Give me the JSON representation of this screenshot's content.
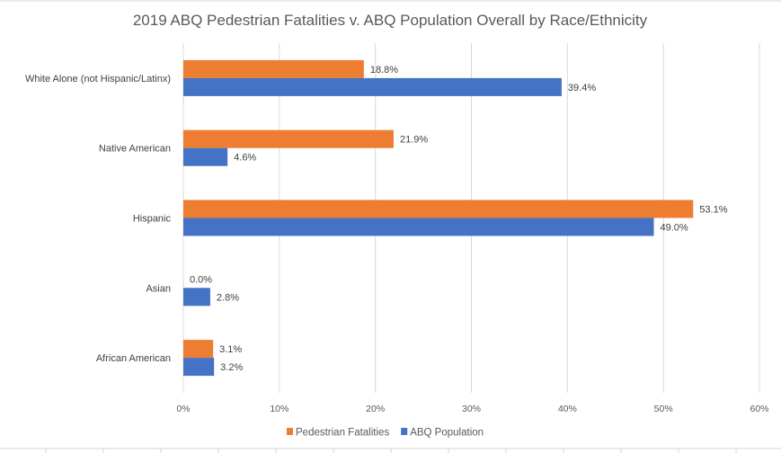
{
  "chart_data": {
    "type": "bar",
    "orientation": "horizontal",
    "title": "2019 ABQ Pedestrian Fatalities  v. ABQ Population Overall by Race/Ethnicity",
    "categories": [
      "White Alone (not Hispanic/Latinx)",
      "Native American",
      "Hispanic",
      "Asian",
      "African American"
    ],
    "series": [
      {
        "name": "Pedestrian Fatalities",
        "color": "#ED7D31",
        "values": [
          18.8,
          21.9,
          53.1,
          0.0,
          3.1
        ],
        "labels": [
          "18.8%",
          "21.9%",
          "53.1%",
          "0.0%",
          "3.1%"
        ]
      },
      {
        "name": "ABQ Population",
        "color": "#4472C4",
        "values": [
          39.4,
          4.6,
          49.0,
          2.8,
          3.2
        ],
        "labels": [
          "39.4%",
          "4.6%",
          "49.0%",
          "2.8%",
          "3.2%"
        ]
      }
    ],
    "xlim": [
      0,
      60
    ],
    "xticks": [
      "0%",
      "10%",
      "20%",
      "30%",
      "40%",
      "50%",
      "60%"
    ],
    "grid": true,
    "legend": "bottom"
  }
}
